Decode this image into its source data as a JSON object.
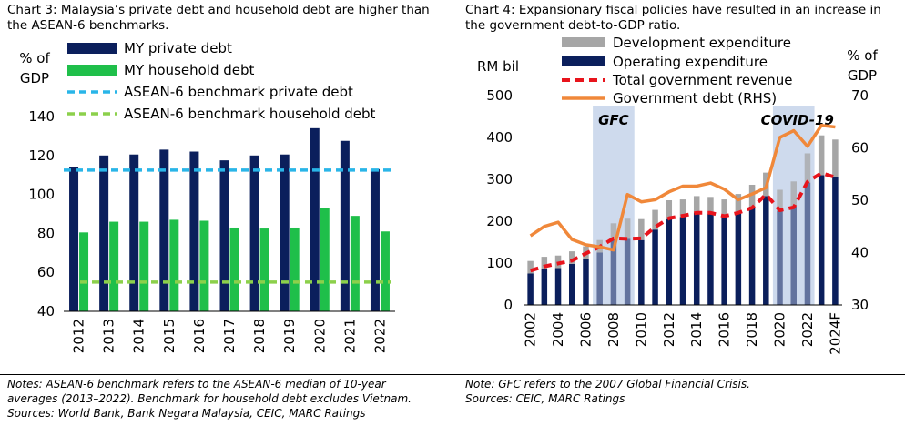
{
  "chart_data": [
    {
      "type": "bar",
      "title": "Chart 3: Malaysia’s private debt and household debt are higher than the ASEAN-6 benchmarks.",
      "ylabel": "% of GDP",
      "ylabel_lines": [
        "% of",
        "GDP"
      ],
      "ylim": [
        40,
        140
      ],
      "yticks": [
        40,
        60,
        80,
        100,
        120,
        140
      ],
      "categories": [
        "2012",
        "2013",
        "2014",
        "2015",
        "2016",
        "2017",
        "2018",
        "2019",
        "2020",
        "2021",
        "2022"
      ],
      "series": [
        {
          "name": "MY private debt",
          "type": "bar",
          "color": "#0b1f5c",
          "values": [
            114,
            120,
            120.5,
            123,
            122,
            117.5,
            120,
            120.5,
            134,
            127.5,
            113
          ]
        },
        {
          "name": "MY household debt",
          "type": "bar",
          "color": "#1fbf4a",
          "values": [
            80.5,
            86,
            86,
            87,
            86.5,
            83,
            82.5,
            83,
            93,
            89,
            81
          ]
        },
        {
          "name": "ASEAN-6 benchmark private debt",
          "type": "dashed-line",
          "color": "#29b5e8",
          "value": 112.5
        },
        {
          "name": "ASEAN-6 benchmark household debt",
          "type": "dashed-line",
          "color": "#8cd04b",
          "value": 55
        }
      ],
      "grid": false,
      "legend_position": "top",
      "notes": [
        "Notes: ASEAN-6 benchmark refers to the ASEAN-6 median of 10-year",
        "averages (2013–2022). Benchmark for household debt excludes Vietnam.",
        "Sources: World Bank, Bank Negara Malaysia, CEIC, MARC Ratings"
      ]
    },
    {
      "type": "bar",
      "title": "Chart 4: Expansionary fiscal policies have resulted in an increase in the government debt-to-GDP ratio.",
      "ylabel": "RM bil",
      "ylabel_right_lines": [
        "% of",
        "GDP"
      ],
      "ylim": [
        0,
        500
      ],
      "yticks": [
        0,
        100,
        200,
        300,
        400,
        500
      ],
      "ylim_right": [
        30,
        70
      ],
      "yticks_right": [
        30,
        40,
        50,
        60,
        70
      ],
      "x": [
        "2002",
        "2003",
        "2004",
        "2005",
        "2006",
        "2007",
        "2008",
        "2009",
        "2010",
        "2011",
        "2012",
        "2013",
        "2014",
        "2015",
        "2016",
        "2017",
        "2018",
        "2019",
        "2020",
        "2021",
        "2022",
        "2023",
        "2024F"
      ],
      "xtick_labels": [
        "2002",
        "2004",
        "2006",
        "2008",
        "2010",
        "2012",
        "2014",
        "2016",
        "2018",
        "2020",
        "2022",
        "2024F"
      ],
      "series": [
        {
          "name": "Development expenditure",
          "type": "stacked-bar",
          "color": "#a6a6a6",
          "values": [
            30,
            30,
            30,
            30,
            30,
            30,
            40,
            48,
            50,
            47,
            45,
            42,
            40,
            40,
            42,
            45,
            52,
            56,
            50,
            60,
            70,
            95,
            90
          ]
        },
        {
          "name": "Operating expenditure",
          "type": "stacked-bar",
          "color": "#0b1f5c",
          "values": [
            75,
            85,
            88,
            98,
            110,
            125,
            155,
            158,
            155,
            180,
            205,
            210,
            220,
            218,
            210,
            220,
            235,
            260,
            225,
            235,
            292,
            310,
            305
          ]
        },
        {
          "name": "Total government revenue",
          "type": "dashed-line",
          "color": "#e8141c",
          "axis": "left",
          "values": [
            82,
            92,
            99,
            106,
            123,
            139,
            159,
            158,
            159,
            186,
            207,
            213,
            220,
            220,
            212,
            220,
            232,
            264,
            226,
            233,
            294,
            315,
            305
          ]
        },
        {
          "name": "Government debt (RHS)",
          "type": "line",
          "color": "#f0883a",
          "axis": "right",
          "values": [
            43.2,
            45.0,
            45.8,
            42.5,
            41.5,
            41.1,
            40.5,
            51.1,
            49.7,
            50.1,
            51.6,
            52.7,
            52.7,
            53.3,
            52.1,
            50.1,
            51.2,
            52.4,
            62.0,
            63.3,
            60.3,
            64.3,
            64.0
          ]
        }
      ],
      "annotations": [
        {
          "text": "GFC",
          "span": [
            "2007",
            "2009"
          ]
        },
        {
          "text": "COVID-19",
          "span": [
            "2020",
            "2022"
          ]
        }
      ],
      "grid": false,
      "legend_position": "top",
      "notes": [
        "Note: GFC refers to the 2007 Global Financial Crisis.",
        "Sources: CEIC, MARC Ratings"
      ]
    }
  ]
}
